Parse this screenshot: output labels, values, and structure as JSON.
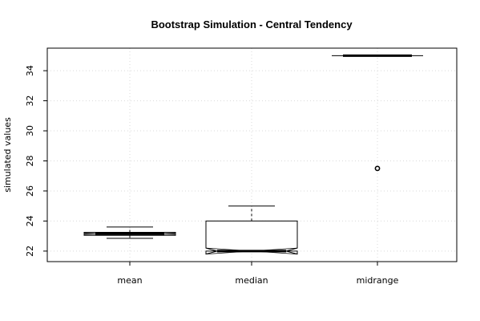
{
  "chart_data": {
    "type": "boxplot",
    "title": "Bootstrap Simulation - Central Tendency",
    "xlabel": "",
    "ylabel": "simulated values",
    "ylim": [
      21.3,
      35.5
    ],
    "yticks": [
      22,
      24,
      26,
      28,
      30,
      32,
      34
    ],
    "grid": true,
    "notched": true,
    "categories": [
      "mean",
      "median",
      "midrange"
    ],
    "boxes": [
      {
        "name": "mean",
        "whisker_low": 22.85,
        "q1": 23.05,
        "median": 23.15,
        "q3": 23.25,
        "whisker_high": 23.6,
        "notch_low": 23.12,
        "notch_high": 23.18,
        "outliers": []
      },
      {
        "name": "median",
        "whisker_low": 22.0,
        "q1": 22.0,
        "median": 22.0,
        "q3": 24.0,
        "whisker_high": 25.0,
        "notch_low": 21.8,
        "notch_high": 22.2,
        "outliers": []
      },
      {
        "name": "midrange",
        "whisker_low": 35.0,
        "q1": 35.0,
        "median": 35.0,
        "q3": 35.0,
        "whisker_high": 35.0,
        "notch_low": 35.0,
        "notch_high": 35.0,
        "outliers": [
          27.5
        ]
      }
    ]
  }
}
